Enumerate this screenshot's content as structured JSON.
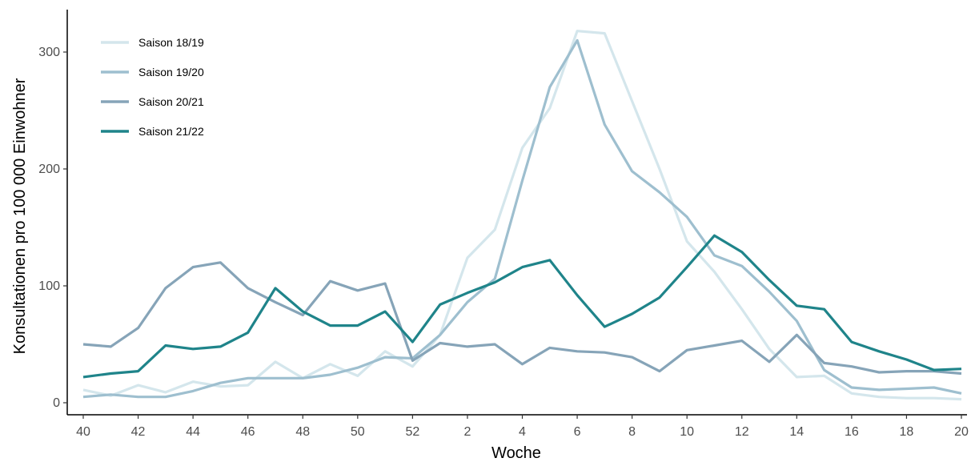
{
  "chart_data": {
    "type": "line",
    "title": "",
    "xlabel": "Woche",
    "ylabel": "Konsultationen pro 100 000 Einwohner",
    "ylim": [
      -10,
      335
    ],
    "y_ticks": [
      0,
      100,
      200,
      300
    ],
    "x_tick_labels": [
      "40",
      "42",
      "44",
      "46",
      "48",
      "50",
      "52",
      "2",
      "4",
      "6",
      "8",
      "10",
      "12",
      "14",
      "16",
      "18",
      "20"
    ],
    "x": [
      "40",
      "41",
      "42",
      "43",
      "44",
      "45",
      "46",
      "47",
      "48",
      "49",
      "50",
      "51",
      "52",
      "1",
      "2",
      "3",
      "4",
      "5",
      "6",
      "7",
      "8",
      "9",
      "10",
      "11",
      "12",
      "13",
      "14",
      "15",
      "16",
      "17",
      "18",
      "19",
      "20"
    ],
    "grid": false,
    "legend_position": "top-left",
    "series": [
      {
        "name": "Saison 18/19",
        "color": "#d4e6ec",
        "values": [
          11,
          6,
          15,
          9,
          18,
          14,
          15,
          35,
          21,
          33,
          23,
          44,
          31,
          58,
          124,
          148,
          218,
          252,
          318,
          316,
          258,
          200,
          138,
          112,
          80,
          46,
          22,
          23,
          8,
          5,
          4,
          4,
          3
        ]
      },
      {
        "name": "Saison 19/20",
        "color": "#9ebfcf",
        "values": [
          5,
          7,
          5,
          5,
          10,
          17,
          21,
          21,
          21,
          24,
          30,
          39,
          38,
          58,
          86,
          106,
          190,
          270,
          310,
          238,
          198,
          180,
          159,
          126,
          117,
          95,
          70,
          28,
          13,
          11,
          12,
          13,
          8
        ]
      },
      {
        "name": "Saison 20/21",
        "color": "#86a4b8",
        "values": [
          50,
          48,
          64,
          98,
          116,
          120,
          98,
          86,
          75,
          104,
          96,
          102,
          36,
          51,
          48,
          50,
          33,
          47,
          44,
          43,
          39,
          27,
          45,
          49,
          53,
          35,
          58,
          34,
          31,
          26,
          27,
          27,
          25
        ]
      },
      {
        "name": "Saison 21/22",
        "color": "#1f848a",
        "values": [
          22,
          25,
          27,
          49,
          46,
          48,
          60,
          98,
          78,
          66,
          66,
          78,
          52,
          84,
          94,
          103,
          116,
          122,
          92,
          65,
          76,
          90,
          116,
          143,
          129,
          105,
          83,
          80,
          52,
          44,
          37,
          28,
          29
        ]
      }
    ]
  }
}
